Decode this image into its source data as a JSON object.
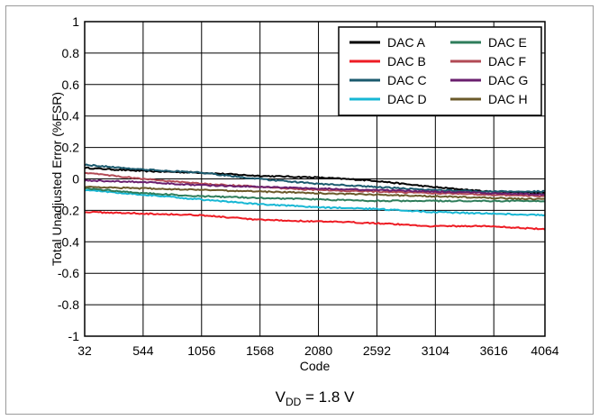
{
  "chart_data": {
    "type": "line",
    "title": "",
    "xlabel": "Code",
    "ylabel": "Total Unadjusted Error (%FSR)",
    "caption": {
      "main": "V",
      "sub": "DD",
      "rest": " = 1.8 V"
    },
    "xlim": [
      32,
      4064
    ],
    "ylim": [
      -1,
      1
    ],
    "x_ticks": [
      32,
      544,
      1056,
      1568,
      2080,
      2592,
      3104,
      3616,
      4064
    ],
    "x_tick_labels": [
      "32",
      "544",
      "1056",
      "1568",
      "2080",
      "2592",
      "3104",
      "3616",
      "4064"
    ],
    "y_ticks": [
      -1,
      -0.8,
      -0.6,
      -0.4,
      -0.2,
      0,
      0.2,
      0.4,
      0.6,
      0.8,
      1
    ],
    "y_tick_labels": [
      "-1",
      "-0.8",
      "-0.6",
      "-0.4",
      "-0.2",
      "0",
      "0.2",
      "0.4",
      "0.6",
      "0.8",
      "1"
    ],
    "grid": true,
    "legend_position": "top-right",
    "x": [
      32,
      544,
      1056,
      1568,
      2080,
      2592,
      3104,
      3616,
      4064
    ],
    "series": [
      {
        "name": "DAC A",
        "color": "#000000",
        "values": [
          0.07,
          0.05,
          0.04,
          0.02,
          0.01,
          -0.01,
          -0.05,
          -0.08,
          -0.09
        ]
      },
      {
        "name": "DAC B",
        "color": "#ee1c24",
        "values": [
          -0.21,
          -0.22,
          -0.23,
          -0.26,
          -0.27,
          -0.28,
          -0.3,
          -0.3,
          -0.32
        ]
      },
      {
        "name": "DAC C",
        "color": "#1b5a6e",
        "values": [
          0.09,
          0.06,
          0.04,
          0.0,
          -0.03,
          -0.05,
          -0.07,
          -0.08,
          -0.08
        ]
      },
      {
        "name": "DAC D",
        "color": "#17b7d4",
        "values": [
          -0.07,
          -0.1,
          -0.13,
          -0.16,
          -0.18,
          -0.19,
          -0.21,
          -0.22,
          -0.23
        ]
      },
      {
        "name": "DAC E",
        "color": "#2e7d5b",
        "values": [
          -0.06,
          -0.09,
          -0.11,
          -0.12,
          -0.13,
          -0.14,
          -0.14,
          -0.14,
          -0.14
        ]
      },
      {
        "name": "DAC F",
        "color": "#b24a55",
        "values": [
          0.04,
          0.0,
          -0.03,
          -0.05,
          -0.07,
          -0.08,
          -0.09,
          -0.1,
          -0.11
        ]
      },
      {
        "name": "DAC G",
        "color": "#6a1f6e",
        "values": [
          -0.01,
          -0.02,
          -0.04,
          -0.05,
          -0.06,
          -0.07,
          -0.08,
          -0.09,
          -0.1
        ]
      },
      {
        "name": "DAC H",
        "color": "#6b5a2a",
        "values": [
          -0.05,
          -0.06,
          -0.07,
          -0.08,
          -0.09,
          -0.1,
          -0.11,
          -0.12,
          -0.13
        ]
      }
    ]
  }
}
